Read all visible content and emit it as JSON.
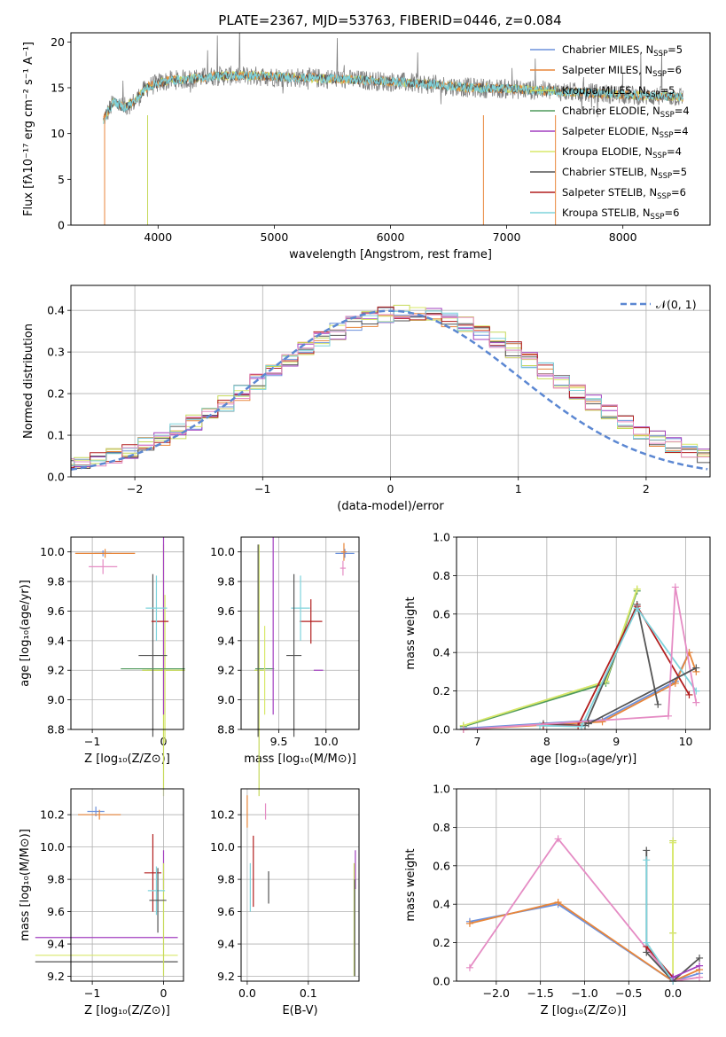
{
  "colors": {
    "chabrier_miles": "#6c91dc",
    "salpeter_miles": "#e8863a",
    "kroupa_miles": "#c6d95a",
    "chabrier_elodie": "#4f9a5c",
    "salpeter_elodie": "#a23fbf",
    "kroupa_elodie": "#d8e86a",
    "chabrier_stelib": "#555555",
    "salpeter_stelib": "#b21e1e",
    "kroupa_stelib": "#7fd3dc",
    "pink": "#e58cc4",
    "data_grey": "#808080",
    "gauss": "#5b87d2"
  },
  "chart_data": [
    {
      "id": "spectrum",
      "type": "line",
      "title": "PLATE=2367, MJD=53763, FIBERID=0446, z=0.084",
      "xlabel": "wavelength [Angstrom, rest frame]",
      "ylabel": "Flux [fλ10⁻¹⁷ erg cm⁻² s⁻¹ A⁻¹]",
      "xlim": [
        3250,
        8750
      ],
      "ylim": [
        0,
        21
      ],
      "xticks": [
        "4000",
        "5000",
        "6000",
        "7000",
        "8000"
      ],
      "yticks": [
        "0",
        "5",
        "10",
        "15",
        "20"
      ],
      "grid": false,
      "legend_position": "upper-right",
      "legend": [
        {
          "label": "Chabrier MILES, N",
          "sub": "SSP",
          "tail": "=5"
        },
        {
          "label": "Salpeter MILES, N",
          "sub": "SSP",
          "tail": "=6"
        },
        {
          "label": "Kroupa MILES, N",
          "sub": "SSP",
          "tail": "=5"
        },
        {
          "label": "Chabrier ELODIE, N",
          "sub": "SSP",
          "tail": "=4"
        },
        {
          "label": "Salpeter ELODIE, N",
          "sub": "SSP",
          "tail": "=4"
        },
        {
          "label": "Kroupa ELODIE, N",
          "sub": "SSP",
          "tail": "=4"
        },
        {
          "label": "Chabrier STELIB, N",
          "sub": "SSP",
          "tail": "=5"
        },
        {
          "label": "Salpeter STELIB, N",
          "sub": "SSP",
          "tail": "=6"
        },
        {
          "label": "Kroupa STELIB, N",
          "sub": "SSP",
          "tail": "=6"
        }
      ],
      "shape": {
        "range": [
          3530,
          8520
        ],
        "knots": [
          [
            3530,
            11.5
          ],
          [
            3620,
            13.5
          ],
          [
            3700,
            12.8
          ],
          [
            3800,
            13.5
          ],
          [
            3900,
            15.0
          ],
          [
            4000,
            15.5
          ],
          [
            4100,
            15.8
          ],
          [
            4300,
            16.0
          ],
          [
            4500,
            16.3
          ],
          [
            4800,
            16.3
          ],
          [
            5000,
            16.2
          ],
          [
            5200,
            16.1
          ],
          [
            5500,
            16.0
          ],
          [
            5800,
            15.8
          ],
          [
            6100,
            15.6
          ],
          [
            6400,
            15.3
          ],
          [
            6700,
            15.0
          ],
          [
            7000,
            14.9
          ],
          [
            7300,
            14.7
          ],
          [
            7600,
            14.5
          ],
          [
            7900,
            14.3
          ],
          [
            8200,
            14.1
          ],
          [
            8520,
            14.0
          ]
        ]
      }
    },
    {
      "id": "residuals",
      "type": "line",
      "xlabel": "(data-model)/error",
      "ylabel": "Normed distribution",
      "xlim": [
        -2.5,
        2.5
      ],
      "ylim": [
        0,
        0.46
      ],
      "xticks": [
        "−2",
        "−1",
        "0",
        "1",
        "2"
      ],
      "yticks": [
        "0.0",
        "0.1",
        "0.2",
        "0.3",
        "0.4"
      ],
      "grid": true,
      "legend": "𝒩(0, 1)",
      "legend_position": "upper-right"
    },
    {
      "id": "age_vs_Z",
      "type": "scatter",
      "xlabel": "Z [log₁₀(Z/Z⊙)]",
      "ylabel": "age  [log₁₀(age/yr)]",
      "xlim": [
        -1.3,
        0.28
      ],
      "ylim": [
        8.8,
        10.1
      ],
      "xticks": [
        "−1",
        "0"
      ],
      "yticks": [
        "8.8",
        "9.0",
        "9.2",
        "9.4",
        "9.6",
        "9.8",
        "10.0"
      ],
      "grid": true
    },
    {
      "id": "age_vs_mass",
      "type": "scatter",
      "xlabel": "mass [log₁₀(M/M⊙)]",
      "ylim": [
        8.8,
        10.1
      ],
      "xlim": [
        9.1,
        10.35
      ],
      "xticks": [
        "9.5",
        "10.0"
      ],
      "yticks": [
        "8.8",
        "9.0",
        "9.2",
        "9.4",
        "9.6",
        "9.8",
        "10.0"
      ],
      "grid": true
    },
    {
      "id": "weight_vs_age",
      "type": "line",
      "xlabel": "age  [log₁₀(age/yr)]",
      "ylabel": "mass weight",
      "xlim": [
        6.7,
        10.35
      ],
      "ylim": [
        0,
        1.0
      ],
      "xticks": [
        "7",
        "8",
        "9",
        "10"
      ],
      "yticks": [
        "0.0",
        "0.2",
        "0.4",
        "0.6",
        "0.8",
        "1.0"
      ],
      "grid": true,
      "series": [
        {
          "color": "chabrier_miles",
          "x": [
            6.8,
            8.8,
            9.85,
            10.05
          ],
          "y": [
            0.005,
            0.05,
            0.25,
            0.4
          ]
        },
        {
          "color": "salpeter_miles",
          "x": [
            6.8,
            8.8,
            9.85,
            10.05,
            10.15
          ],
          "y": [
            0.0,
            0.04,
            0.24,
            0.4,
            0.3
          ]
        },
        {
          "color": "kroupa_miles",
          "x": [
            6.8,
            8.85,
            9.3
          ],
          "y": [
            0.02,
            0.25,
            0.73
          ]
        },
        {
          "color": "chabrier_elodie",
          "x": [
            6.8,
            8.85,
            9.3
          ],
          "y": [
            0.015,
            0.24,
            0.72
          ]
        },
        {
          "color": "kroupa_elodie",
          "x": [
            6.8,
            8.85,
            9.3
          ],
          "y": [
            0.02,
            0.25,
            0.73
          ]
        },
        {
          "color": "chabrier_stelib",
          "x": [
            7.95,
            8.55,
            9.3,
            9.6
          ],
          "y": [
            0.03,
            0.02,
            0.65,
            0.13
          ]
        },
        {
          "color": "salpeter_stelib",
          "x": [
            7.95,
            8.45,
            9.3,
            10.05
          ],
          "y": [
            0.02,
            0.02,
            0.64,
            0.18
          ]
        },
        {
          "color": "kroupa_stelib",
          "x": [
            7.9,
            8.5,
            9.3,
            10.15
          ],
          "y": [
            0.02,
            0.015,
            0.63,
            0.2
          ]
        },
        {
          "color": "pink",
          "x": [
            6.8,
            9.75,
            9.85,
            10.15
          ],
          "y": [
            0.0,
            0.07,
            0.74,
            0.14
          ]
        },
        {
          "color": "chabrier_stelib",
          "x": [
            8.6,
            10.15
          ],
          "y": [
            0.03,
            0.32
          ]
        }
      ]
    },
    {
      "id": "mass_vs_Z",
      "type": "scatter",
      "xlabel": "Z [log₁₀(Z/Z⊙)]",
      "ylabel": "mass [log₁₀(M/M⊙)]",
      "xlim": [
        -1.3,
        0.28
      ],
      "ylim": [
        9.17,
        10.36
      ],
      "xticks": [
        "−1",
        "0"
      ],
      "yticks": [
        "9.2",
        "9.4",
        "9.6",
        "9.8",
        "10.0",
        "10.2"
      ],
      "grid": true
    },
    {
      "id": "mass_vs_EBV",
      "type": "scatter",
      "xlabel": "E(B-V)",
      "xlim": [
        -0.01,
        0.183
      ],
      "ylim": [
        9.17,
        10.36
      ],
      "xticks": [
        "0.0",
        "0.1"
      ],
      "yticks": [
        "9.2",
        "9.4",
        "9.6",
        "9.8",
        "10.0",
        "10.2"
      ],
      "grid": true
    },
    {
      "id": "weight_vs_Z",
      "type": "line",
      "xlabel": "Z [log₁₀(Z/Z⊙)]",
      "ylabel": "mass weight",
      "xlim": [
        -2.45,
        0.42
      ],
      "ylim": [
        0,
        1.0
      ],
      "xticks": [
        "−2.0",
        "−1.5",
        "−1.0",
        "−0.5",
        "0.0"
      ],
      "yticks": [
        "0.0",
        "0.2",
        "0.4",
        "0.6",
        "0.8",
        "1.0"
      ],
      "grid": true,
      "series": [
        {
          "color": "chabrier_miles",
          "x": [
            -2.3,
            -1.3,
            0.0,
            0.3
          ],
          "y": [
            0.31,
            0.4,
            0.0,
            0.04
          ]
        },
        {
          "color": "salpeter_miles",
          "x": [
            -2.3,
            -1.3,
            0.0,
            0.3
          ],
          "y": [
            0.3,
            0.41,
            0.0,
            0.06
          ]
        },
        {
          "color": "pink",
          "x": [
            -2.3,
            -1.3,
            0.0,
            0.3
          ],
          "y": [
            0.07,
            0.74,
            0.0,
            0.02
          ]
        },
        {
          "color": "kroupa_miles",
          "x": [
            0.0,
            0.0
          ],
          "y": [
            0.73,
            0.25
          ]
        },
        {
          "color": "kroupa_elodie",
          "x": [
            0.0,
            0.0
          ],
          "y": [
            0.72,
            0.02
          ]
        },
        {
          "color": "chabrier_stelib",
          "x": [
            -0.3,
            -0.3,
            0.0,
            0.3
          ],
          "y": [
            0.68,
            0.15,
            0.0,
            0.12
          ]
        },
        {
          "color": "salpeter_stelib",
          "x": [
            -0.3,
            0.0
          ],
          "y": [
            0.18,
            0.02
          ]
        },
        {
          "color": "kroupa_stelib",
          "x": [
            -0.3,
            -0.3,
            0.0
          ],
          "y": [
            0.63,
            0.2,
            0.0
          ]
        },
        {
          "color": "salpeter_elodie",
          "x": [
            0.0,
            0.3
          ],
          "y": [
            0.02,
            0.08
          ]
        }
      ]
    }
  ]
}
